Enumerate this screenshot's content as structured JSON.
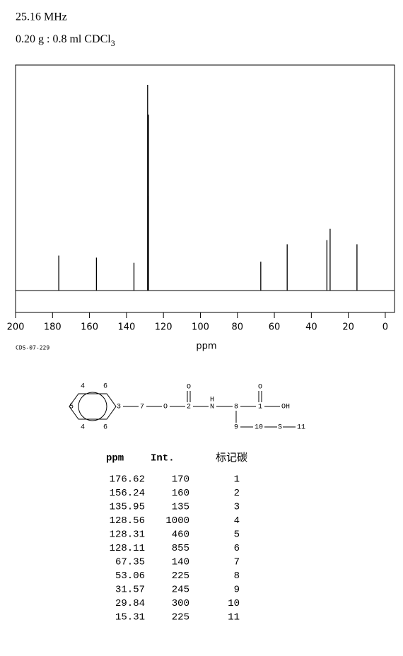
{
  "header": {
    "frequency": "25.16 MHz",
    "sample": "0.20 g : 0.8 ml CDCl",
    "sample_subscript": "3"
  },
  "chart_data": {
    "type": "spectrum",
    "xlabel": "ppm",
    "note": "CDS-07-229",
    "x": [
      176.62,
      156.24,
      135.95,
      128.56,
      128.31,
      128.11,
      67.35,
      53.06,
      31.57,
      29.84,
      15.31
    ],
    "values": [
      170,
      160,
      135,
      1000,
      460,
      855,
      140,
      225,
      245,
      300,
      225
    ],
    "color": "#000000",
    "xlim": [
      200,
      -5
    ],
    "xticks": [
      200,
      180,
      160,
      140,
      120,
      100,
      80,
      60,
      40,
      20,
      0
    ],
    "ylim": [
      0,
      1000
    ]
  },
  "structure": {
    "atoms": [
      "4",
      "6",
      "5",
      "3",
      "4",
      "6",
      "7",
      "O",
      "O",
      "2",
      "H",
      "N",
      "8",
      "O",
      "1",
      "OH",
      "9",
      "10",
      "S",
      "11"
    ]
  },
  "table": {
    "columns": [
      "ppm",
      "Int.",
      "标记碳"
    ],
    "carbon": [
      1,
      2,
      3,
      4,
      5,
      6,
      7,
      8,
      9,
      10,
      11
    ]
  }
}
